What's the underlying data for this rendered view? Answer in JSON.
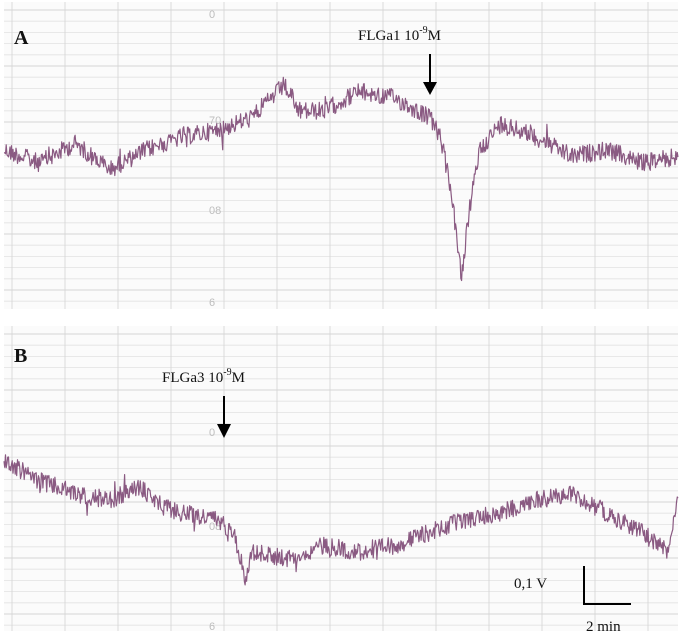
{
  "chart_data": [
    {
      "type": "line",
      "panel": "A",
      "annotation": {
        "label": "FLGa1 10",
        "exponent": "-9",
        "unit": "M"
      },
      "paper_numbers": [
        "0",
        "70",
        "08",
        "6"
      ],
      "trace_color": "#8a5a82",
      "x_range_min": [
        0,
        19
      ],
      "event_time_min": 12.3,
      "series": [
        {
          "x": [
            0,
            1,
            2,
            3,
            4,
            5,
            6,
            7,
            7.9,
            8.3,
            9,
            10,
            11,
            12,
            12.3,
            12.6,
            12.9,
            13.1,
            13.4,
            14,
            15,
            16,
            17,
            18,
            19
          ],
          "y": [
            0.0,
            -0.02,
            0.01,
            -0.03,
            0.0,
            0.02,
            0.03,
            0.05,
            0.1,
            0.06,
            0.06,
            0.09,
            0.08,
            0.05,
            0.02,
            -0.06,
            -0.2,
            -0.1,
            0.0,
            0.04,
            0.02,
            -0.01,
            0.0,
            -0.02,
            -0.01
          ]
        }
      ]
    },
    {
      "type": "line",
      "panel": "B",
      "annotation": {
        "label": "FLGa3 10",
        "exponent": "-9",
        "unit": "M"
      },
      "paper_numbers": [
        "0",
        "08",
        "6"
      ],
      "trace_color": "#8a5a82",
      "x_range_min": [
        0,
        19
      ],
      "event_time_min": 6.3,
      "series": [
        {
          "x": [
            0,
            1,
            2,
            3,
            3.8,
            4.5,
            5,
            6,
            6.5,
            6.8,
            7,
            8,
            9,
            10,
            11,
            12,
            13,
            14,
            15,
            16,
            17,
            18,
            18.7,
            19
          ],
          "y": [
            0.06,
            0.03,
            0.01,
            0.0,
            0.02,
            -0.01,
            -0.02,
            -0.03,
            -0.05,
            -0.12,
            -0.08,
            -0.09,
            -0.07,
            -0.08,
            -0.07,
            -0.05,
            -0.03,
            -0.02,
            0.0,
            0.01,
            -0.02,
            -0.05,
            -0.08,
            0.0
          ]
        }
      ]
    }
  ],
  "scale_bar": {
    "vertical_label": "0,1 V",
    "horizontal_label": "2 min"
  }
}
